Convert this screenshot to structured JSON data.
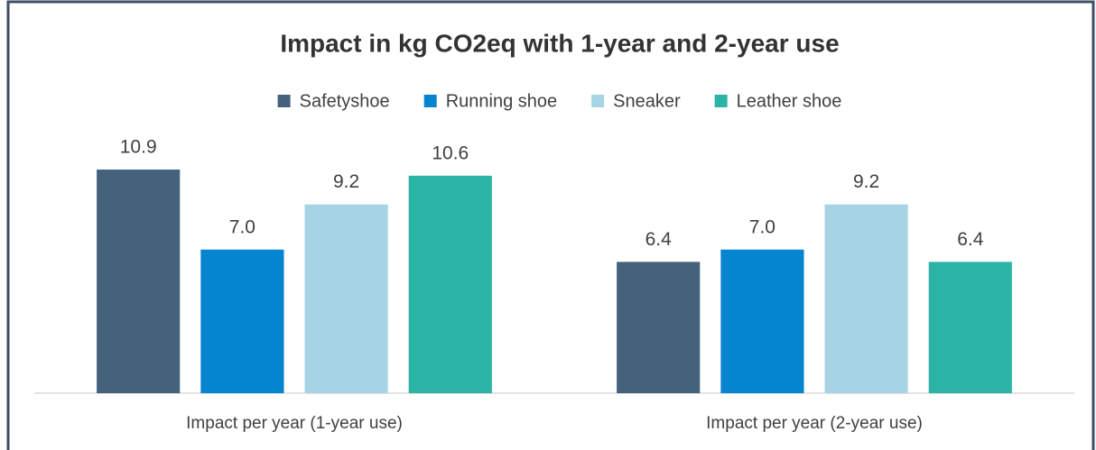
{
  "chart_data": {
    "type": "bar",
    "title": "Impact in kg CO2eq with 1-year and 2-year use",
    "categories": [
      "Impact per year (1-year use)",
      "Impact per year (2-year use)"
    ],
    "series": [
      {
        "name": "Safetyshoe",
        "color": "#44627c",
        "values": [
          10.9,
          6.4
        ]
      },
      {
        "name": "Running shoe",
        "color": "#0585d0",
        "values": [
          7,
          7
        ],
        "value_labels": [
          "7.0",
          "7.0"
        ]
      },
      {
        "name": "Sneaker",
        "color": "#a6d4e4",
        "values": [
          9.2,
          9.2
        ]
      },
      {
        "name": "Leather shoe",
        "color": "#2bb3a5",
        "values": [
          10.6,
          6.4
        ]
      }
    ],
    "ylim": [
      0,
      12
    ],
    "legend": "top"
  }
}
